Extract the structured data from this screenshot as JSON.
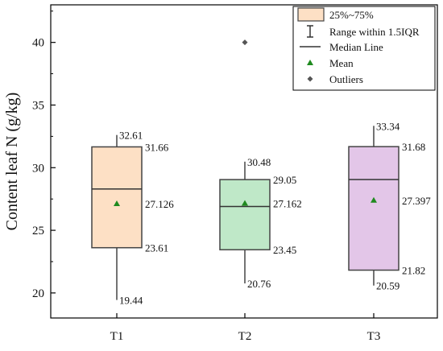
{
  "chart_data": {
    "type": "box",
    "ylabel": "Content leaf N (g/kg)",
    "xlabel": "",
    "ylim": [
      18.0,
      43.0
    ],
    "yticks": [
      20,
      25,
      30,
      35,
      40
    ],
    "categories": [
      "T1",
      "T2",
      "T3"
    ],
    "boxes": [
      {
        "category": "T1",
        "whisker_low": 19.44,
        "q1": 23.61,
        "median": 28.3,
        "q3": 31.66,
        "whisker_high": 32.61,
        "mean": 27.126,
        "outliers": [],
        "labels": {
          "whisker_high": "32.61",
          "q3": "31.66",
          "mean": "27.126",
          "q1": "23.61",
          "whisker_low": "19.44"
        },
        "fill": "#fde0c5",
        "stroke": "#444444"
      },
      {
        "category": "T2",
        "whisker_low": 20.76,
        "q1": 23.45,
        "median": 26.9,
        "q3": 29.05,
        "whisker_high": 30.48,
        "mean": 27.162,
        "outliers": [
          40.0
        ],
        "labels": {
          "whisker_high": "30.48",
          "q3": "29.05",
          "mean": "27.162",
          "q1": "23.45",
          "whisker_low": "20.76"
        },
        "fill": "#bfe8c8",
        "stroke": "#444444"
      },
      {
        "category": "T3",
        "whisker_low": 20.59,
        "q1": 21.82,
        "median": 29.05,
        "q3": 31.68,
        "whisker_high": 33.34,
        "mean": 27.397,
        "outliers": [],
        "labels": {
          "whisker_high": "33.34",
          "q3": "31.68",
          "mean": "27.397",
          "q1": "21.82",
          "whisker_low": "20.59"
        },
        "fill": "#e3c6e8",
        "stroke": "#444444"
      }
    ],
    "legend": {
      "placement": "top-right",
      "entries": [
        {
          "symbol": "box",
          "label": "25%~75%"
        },
        {
          "symbol": "whisker",
          "label": "Range within 1.5IQR"
        },
        {
          "symbol": "line",
          "label": "Median Line"
        },
        {
          "symbol": "triangle",
          "label": "Mean"
        },
        {
          "symbol": "diamond",
          "label": "Outliers"
        }
      ]
    },
    "colors": {
      "mean_marker": "#1f8a1f",
      "outlier_marker": "#555555",
      "axis": "#000000"
    },
    "grid": false
  }
}
